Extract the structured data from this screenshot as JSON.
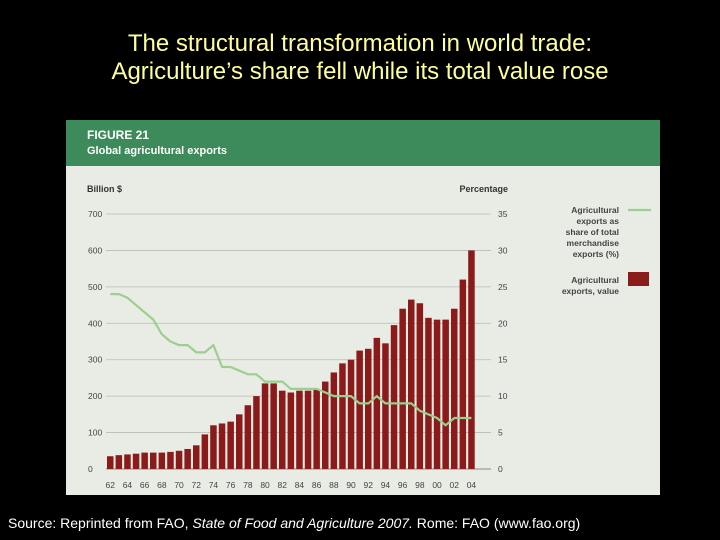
{
  "slide": {
    "title_line1": "The structural transformation in world trade:",
    "title_line2": "Agriculture’s share fell while its total value rose",
    "source_prefix": "Source: Reprinted from FAO, ",
    "source_italic": "State of Food and Agriculture 2007.",
    "source_suffix": "  Rome: FAO (www.fao.org)"
  },
  "figure": {
    "number": "FIGURE 21",
    "title": "Global agricultural exports"
  },
  "colors": {
    "header": "#3d8a5a",
    "bars": "#8b1a1a",
    "line": "#9ccf8f",
    "panel": "#e9ece4"
  },
  "chart_data": {
    "type": "bar",
    "left_axis_label": "Billion $",
    "right_axis_label": "Percentage",
    "ylim_left": [
      0,
      700
    ],
    "ylim_right": [
      0,
      35
    ],
    "left_ticks": [
      "0",
      "100",
      "200",
      "300",
      "400",
      "500",
      "600",
      "700"
    ],
    "right_ticks": [
      "0",
      "5",
      "10",
      "15",
      "20",
      "25",
      "30",
      "35"
    ],
    "x_tick_labels": [
      "62",
      "64",
      "66",
      "68",
      "70",
      "72",
      "74",
      "76",
      "78",
      "80",
      "82",
      "84",
      "86",
      "88",
      "90",
      "92",
      "94",
      "96",
      "98",
      "00",
      "02",
      "04"
    ],
    "years": [
      1962,
      1963,
      1964,
      1965,
      1966,
      1967,
      1968,
      1969,
      1970,
      1971,
      1972,
      1973,
      1974,
      1975,
      1976,
      1977,
      1978,
      1979,
      1980,
      1981,
      1982,
      1983,
      1984,
      1985,
      1986,
      1987,
      1988,
      1989,
      1990,
      1991,
      1992,
      1993,
      1994,
      1995,
      1996,
      1997,
      1998,
      1999,
      2000,
      2001,
      2002,
      2003,
      2004
    ],
    "series": [
      {
        "name": "Agricultural exports, value",
        "type": "bar",
        "axis": "left",
        "values": [
          35,
          38,
          40,
          42,
          45,
          45,
          45,
          47,
          50,
          55,
          65,
          95,
          120,
          125,
          130,
          150,
          175,
          200,
          235,
          235,
          215,
          210,
          215,
          215,
          220,
          240,
          265,
          290,
          300,
          325,
          330,
          360,
          345,
          395,
          440,
          465,
          455,
          415,
          410,
          410,
          440,
          520,
          600
        ]
      },
      {
        "name": "Agricultural exports as share of total merchandise exports (%)",
        "type": "line",
        "axis": "right",
        "values": [
          24,
          24,
          23.5,
          22.5,
          21.5,
          20.5,
          18.5,
          17.5,
          17,
          17,
          16,
          16,
          17,
          14,
          14,
          13.5,
          13,
          13,
          12,
          12,
          12,
          11,
          11,
          11,
          11,
          10.5,
          10,
          10,
          10,
          9,
          9,
          10,
          9,
          9,
          9,
          9,
          8,
          7.5,
          7,
          6,
          7,
          7,
          7
        ]
      }
    ],
    "legend": [
      "Agricultural exports as share of total merchandise exports (%)",
      "Agricultural exports, value"
    ]
  }
}
